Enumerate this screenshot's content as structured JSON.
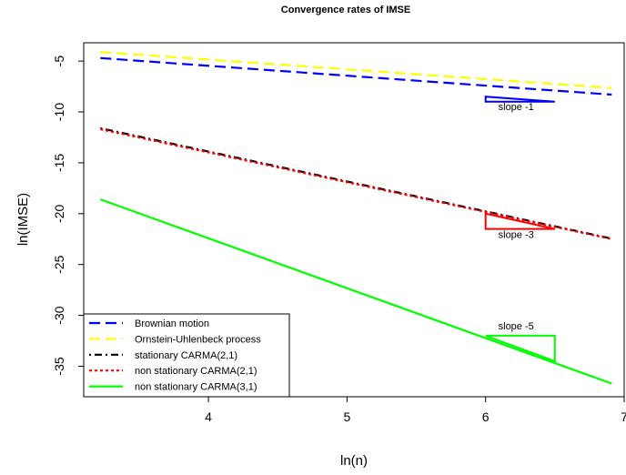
{
  "chart_data": {
    "type": "line",
    "title": "Convergence rates of IMSE",
    "xlabel": "ln(n)",
    "ylabel": "ln(IMSE)",
    "xlim": [
      3.1,
      7.0
    ],
    "ylim": [
      -38,
      -3.2
    ],
    "xticks": [
      4,
      5,
      6,
      7
    ],
    "yticks": [
      -5,
      -10,
      -15,
      -20,
      -25,
      -30,
      -35
    ],
    "grid": false,
    "legend_position": "bottom-left",
    "series": [
      {
        "name": "Brownian motion",
        "color": "#0000ff",
        "dash": "longdash",
        "x": [
          3.22,
          6.91
        ],
        "y": [
          -4.7,
          -8.3
        ]
      },
      {
        "name": "Ornstein-Uhlenbeck process",
        "color": "#ffff00",
        "dash": "longdash",
        "x": [
          3.22,
          6.91
        ],
        "y": [
          -4.1,
          -7.65
        ]
      },
      {
        "name": "stationary CARMA(2,1)",
        "color": "#000000",
        "dash": "dotdash",
        "x": [
          3.22,
          6.91
        ],
        "y": [
          -11.6,
          -22.45
        ]
      },
      {
        "name": "non stationary CARMA(2,1)",
        "color": "#ff0000",
        "dash": "dotted",
        "x": [
          3.22,
          6.91
        ],
        "y": [
          -11.7,
          -22.5
        ]
      },
      {
        "name": "non stationary CARMA(3,1)",
        "color": "#00ff00",
        "dash": "solid",
        "x": [
          3.22,
          6.91
        ],
        "y": [
          -18.6,
          -36.7
        ]
      }
    ],
    "annotations": [
      {
        "text": "slope -1",
        "color": "#0000ff",
        "slope": -1,
        "triangle": {
          "x": [
            6.0,
            6.0,
            6.5
          ],
          "y": [
            -8.5,
            -9.0,
            -9.0
          ]
        },
        "label_at": [
          6.22,
          -9.8
        ]
      },
      {
        "text": "slope -3",
        "color": "#ff0000",
        "slope": -3,
        "triangle": {
          "x": [
            6.0,
            6.0,
            6.5
          ],
          "y": [
            -20.0,
            -21.5,
            -21.5
          ]
        },
        "label_at": [
          6.22,
          -22.4
        ]
      },
      {
        "text": "slope -5",
        "color": "#00ff00",
        "slope": -5,
        "triangle": {
          "x": [
            6.0,
            6.5,
            6.5
          ],
          "y": [
            -32.0,
            -32.0,
            -34.5
          ]
        },
        "label_at": [
          6.22,
          -31.4
        ]
      }
    ]
  }
}
